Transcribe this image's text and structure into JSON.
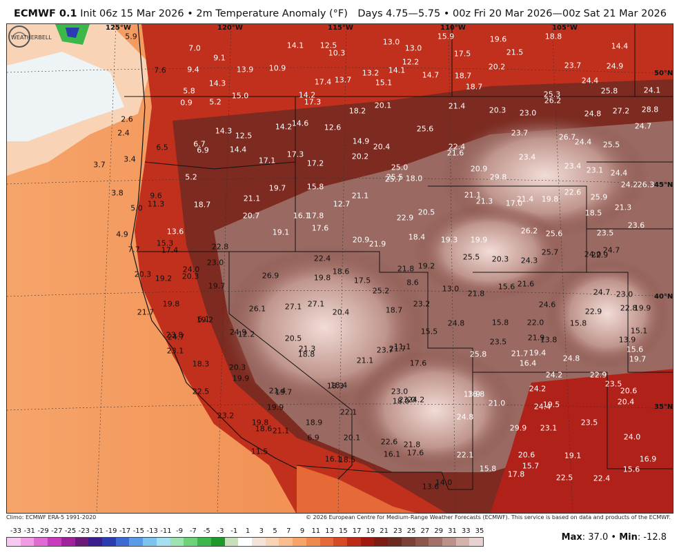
{
  "header": {
    "model": "ECMWF 0.1",
    "init": "Init 06z 15 Mar 2026",
    "bullet": "•",
    "field": "2m Temperature Anomaly (°F)",
    "valid": "Days 4.75—5.75 • 00z Fri 20 Mar 2026—00z Sat 21 Mar 2026"
  },
  "grid_labels": {
    "lon": [
      "125°W",
      "120°W",
      "115°W",
      "110°W",
      "105°W"
    ],
    "lat": [
      "50°N",
      "45°N",
      "40°N",
      "35°N"
    ]
  },
  "footer": {
    "climo": "Climo: ECMWF ERA-5 1991-2020",
    "copyright": "© 2026 European Centre for Medium-Range Weather Forecasts (ECMWF). This service is based on data and products of the ECMWF."
  },
  "colorbar": {
    "ticks": [
      "-33",
      "-31",
      "-29",
      "-27",
      "-25",
      "-23",
      "-21",
      "-19",
      "-17",
      "-15",
      "-13",
      "-11",
      "-9",
      "-7",
      "-5",
      "-3",
      "-1",
      "1",
      "3",
      "5",
      "7",
      "9",
      "11",
      "13",
      "15",
      "17",
      "19",
      "21",
      "23",
      "25",
      "27",
      "29",
      "31",
      "33",
      "35"
    ],
    "colors": [
      "#f6c9f0",
      "#f09be4",
      "#e06ad3",
      "#c93bbd",
      "#a0229a",
      "#6c1a7a",
      "#3a1c8c",
      "#2a3cb0",
      "#3c6ad0",
      "#5b9ae6",
      "#7dc3f0",
      "#a5e0f0",
      "#9be4b0",
      "#6ed27a",
      "#3cb84a",
      "#1e9a2a",
      "#c9dfb9",
      "#ffffff",
      "#f4e3d6",
      "#f9d3b5",
      "#f9bd8f",
      "#f6a46a",
      "#f08a4c",
      "#e66a38",
      "#d64a26",
      "#bf2a18",
      "#a01810",
      "#7d1a14",
      "#6b2a22",
      "#7a3f36",
      "#8d564c",
      "#a3716a",
      "#bc9188",
      "#d4b3ad",
      "#e8d2cf"
    ]
  },
  "stats": {
    "max_label": "Max",
    "max": "37.0",
    "sep": "•",
    "min_label": "Min",
    "min": "-12.8"
  },
  "logo": {
    "text": "WEATHERBELL"
  },
  "map_values": [
    "5.9",
    "7.0",
    "14.1",
    "12.5",
    "10.3",
    "13.0",
    "13.0",
    "15.9",
    "19.6",
    "18.8",
    "14.4",
    "9.1",
    "12.2",
    "17.5",
    "21.5",
    "7.6",
    "9.4",
    "13.9",
    "10.9",
    "13.2",
    "14.1",
    "14.7",
    "18.7",
    "20.2",
    "23.7",
    "24.9",
    "14.3",
    "17.4",
    "13.7",
    "15.1",
    "18.7",
    "24.4",
    "25.8",
    "24.1",
    "5.8",
    "15.0",
    "14.2",
    "25.3",
    "26.2",
    "0.9",
    "5.2",
    "17.3",
    "18.2",
    "20.1",
    "21.4",
    "20.3",
    "23.0",
    "24.8",
    "27.2",
    "28.8",
    "2.6",
    "14.6",
    "12.6",
    "25.6",
    "23.7",
    "24.7",
    "2.4",
    "14.3",
    "12.5",
    "14.2",
    "14.9",
    "26.7",
    "24.4",
    "25.5",
    "6.5",
    "6.7",
    "6.9",
    "14.4",
    "20.4",
    "22.4",
    "21.6",
    "23.4",
    "3.7",
    "3.4",
    "17.3",
    "17.2",
    "20.2",
    "25.0",
    "20.9",
    "23.4",
    "23.1",
    "24.4",
    "17.1",
    "25.5",
    "25.7",
    "18.0",
    "29.8",
    "24.2",
    "26.3",
    "5.2",
    "19.7",
    "15.8",
    "21.1",
    "21.1",
    "3.8",
    "21.1",
    "21.3",
    "21.4",
    "19.8",
    "22.6",
    "25.9",
    "9.6",
    "11.3",
    "18.7",
    "12.7",
    "20.5",
    "17.0",
    "21.3",
    "5.0",
    "20.7",
    "16.1",
    "17.8",
    "22.9",
    "18.5",
    "23.6",
    "17.6",
    "19.1",
    "26.2",
    "25.6",
    "23.5",
    "13.6",
    "18.4",
    "19.3",
    "19.9",
    "4.9",
    "15.3",
    "22.8",
    "20.9",
    "21.9",
    "24.0",
    "24.7",
    "7.7",
    "17.4",
    "23.0",
    "25.5",
    "20.3",
    "24.3",
    "25.7",
    "22.9",
    "22.4",
    "18.6",
    "21.8",
    "19.2",
    "24.0",
    "26.9",
    "19.8",
    "17.5",
    "8.6",
    "20.3",
    "19.2",
    "20.3",
    "13.0",
    "15.6",
    "21.6",
    "24.7",
    "23.0",
    "19.7",
    "25.2",
    "21.8",
    "23.2",
    "19.8",
    "24.6",
    "22.9",
    "22.8",
    "19.9",
    "26.1",
    "27.1",
    "27.1",
    "20.4",
    "18.7",
    "24.8",
    "15.8",
    "22.0",
    "6.1",
    "15.8",
    "21.7",
    "19.2",
    "15.1",
    "15.5",
    "24.9",
    "12.2",
    "20.5",
    "23.5",
    "21.9",
    "13.8",
    "13.9",
    "24.7",
    "23.8",
    "21.3",
    "21.7",
    "11.1",
    "25.8",
    "15.6",
    "23.1",
    "18.8",
    "23.7",
    "21.7",
    "19.4",
    "24.8",
    "19.7",
    "18.3",
    "21.1",
    "17.6",
    "20.3",
    "16.4",
    "24.2",
    "22.9",
    "19.9",
    "21.4",
    "18.4",
    "18.3",
    "13.9",
    "24.2",
    "23.5",
    "20.6",
    "22.5",
    "19.7",
    "23.0",
    "16.8",
    "21.0",
    "23.0",
    "18.0",
    "20.4",
    "19.9",
    "24.2",
    "19.5",
    "24.4",
    "23.2",
    "22.1",
    "24.8",
    "19.8",
    "18.9",
    "18.6",
    "21.1",
    "29.9",
    "23.1",
    "23.5",
    "20.1",
    "6.9",
    "22.6",
    "21.8",
    "24.0",
    "11.5",
    "16.1",
    "17.6",
    "22.1",
    "20.6",
    "19.1",
    "16.1",
    "18.5",
    "15.7",
    "16.9",
    "15.8",
    "17.8",
    "22.5",
    "22.4",
    "15.6",
    "14.0",
    "13.6"
  ]
}
